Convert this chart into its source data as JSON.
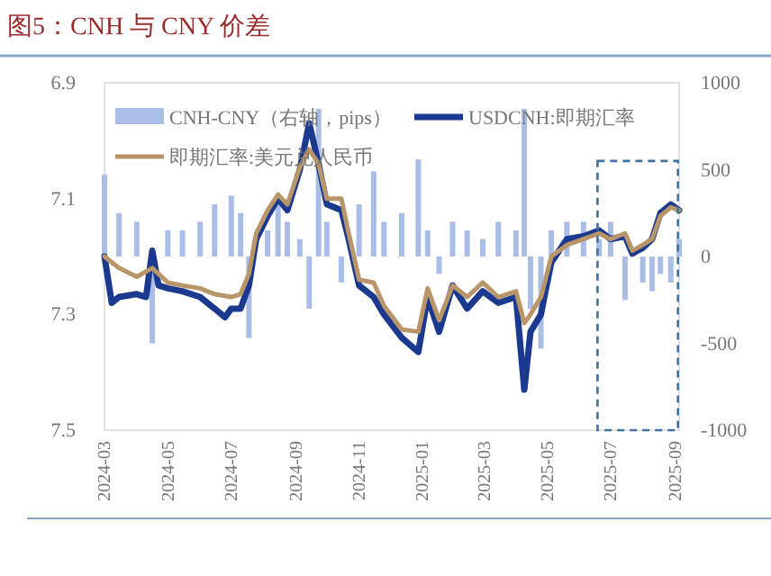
{
  "chart_data": {
    "type": "bar",
    "title": "图5：CNH 与 CNY 价差",
    "xlim": [
      "2024-03-01",
      "2025-09-05"
    ],
    "xticks": [
      {
        "value": "2024-03-01",
        "label": "2024-03"
      },
      {
        "value": "2024-05-01",
        "label": "2024-05"
      },
      {
        "value": "2024-07-01",
        "label": "2024-07"
      },
      {
        "value": "2024-09-01",
        "label": "2024-09"
      },
      {
        "value": "2024-11-01",
        "label": "2024-11"
      },
      {
        "value": "2025-01-01",
        "label": "2025-01"
      },
      {
        "value": "2025-03-01",
        "label": "2025-03"
      },
      {
        "value": "2025-05-01",
        "label": "2025-05"
      },
      {
        "value": "2025-07-01",
        "label": "2025-07"
      },
      {
        "value": "2025-09-01",
        "label": "2025-09"
      }
    ],
    "ylim": [
      7.5,
      6.9
    ],
    "yticks": [
      {
        "value": 6.9,
        "label": "6.9"
      },
      {
        "value": 7.1,
        "label": "7.1"
      },
      {
        "value": 7.3,
        "label": "7.3"
      },
      {
        "value": 7.5,
        "label": "7.5"
      }
    ],
    "y2lim": [
      -1000,
      1000
    ],
    "y2ticks": [
      -1000,
      -500,
      0,
      500,
      1000
    ],
    "grid": false,
    "legend": "top",
    "series": [
      {
        "name": "CNH-CNY（右轴，pips）",
        "axis": "y2",
        "color": "#a9bde6",
        "x": [
          "2024-03-01",
          "2024-03-15",
          "2024-04-01",
          "2024-04-16",
          "2024-05-01",
          "2024-05-15",
          "2024-06-01",
          "2024-06-15",
          "2024-07-01",
          "2024-07-10",
          "2024-07-18",
          "2024-07-25",
          "2024-08-05",
          "2024-08-15",
          "2024-08-24",
          "2024-09-05",
          "2024-09-14",
          "2024-09-23",
          "2024-10-01",
          "2024-10-15",
          "2024-10-22",
          "2024-11-01",
          "2024-11-15",
          "2024-11-25",
          "2024-12-12",
          "2024-12-28",
          "2025-01-06",
          "2025-01-17",
          "2025-01-30",
          "2025-02-13",
          "2025-02-28",
          "2025-03-15",
          "2025-04-01",
          "2025-04-09",
          "2025-04-15",
          "2025-04-25",
          "2025-05-05",
          "2025-05-20",
          "2025-06-05",
          "2025-06-20",
          "2025-07-01",
          "2025-07-15",
          "2025-07-22",
          "2025-08-01",
          "2025-08-10",
          "2025-08-18",
          "2025-08-28",
          "2025-09-05"
        ],
        "values": [
          470,
          250,
          200,
          -500,
          150,
          150,
          200,
          300,
          350,
          250,
          -470,
          null,
          150,
          300,
          200,
          100,
          -300,
          850,
          200,
          -150,
          null,
          300,
          490,
          200,
          250,
          560,
          150,
          -100,
          200,
          150,
          100,
          200,
          150,
          850,
          -300,
          -530,
          150,
          200,
          200,
          100,
          200,
          -250,
          null,
          -150,
          -200,
          -100,
          -150,
          100
        ]
      },
      {
        "name": "USDCNH:即期汇率",
        "type": "line",
        "color": "#1b3a8f",
        "x": [
          "2024-03-01",
          "2024-03-08",
          "2024-03-15",
          "2024-04-01",
          "2024-04-10",
          "2024-04-16",
          "2024-04-22",
          "2024-05-01",
          "2024-05-15",
          "2024-06-01",
          "2024-06-15",
          "2024-06-25",
          "2024-07-01",
          "2024-07-10",
          "2024-07-18",
          "2024-07-25",
          "2024-08-05",
          "2024-08-15",
          "2024-08-24",
          "2024-09-05",
          "2024-09-14",
          "2024-09-23",
          "2024-10-01",
          "2024-10-15",
          "2024-10-22",
          "2024-11-01",
          "2024-11-15",
          "2024-11-25",
          "2024-12-12",
          "2024-12-28",
          "2025-01-06",
          "2025-01-17",
          "2025-01-30",
          "2025-02-13",
          "2025-02-28",
          "2025-03-15",
          "2025-04-01",
          "2025-04-09",
          "2025-04-15",
          "2025-04-25",
          "2025-05-05",
          "2025-05-20",
          "2025-06-05",
          "2025-06-20",
          "2025-07-01",
          "2025-07-15",
          "2025-07-22",
          "2025-08-01",
          "2025-08-10",
          "2025-08-18",
          "2025-08-28",
          "2025-09-05"
        ],
        "values": [
          7.2,
          7.28,
          7.27,
          7.265,
          7.27,
          7.19,
          7.25,
          7.255,
          7.26,
          7.27,
          7.29,
          7.305,
          7.29,
          7.29,
          7.25,
          7.17,
          7.13,
          7.1,
          7.12,
          7.05,
          6.97,
          7.04,
          7.11,
          7.12,
          7.17,
          7.25,
          7.27,
          7.3,
          7.34,
          7.365,
          7.27,
          7.33,
          7.25,
          7.29,
          7.26,
          7.28,
          7.27,
          7.43,
          7.33,
          7.3,
          7.21,
          7.17,
          7.165,
          7.155,
          7.17,
          7.165,
          7.195,
          7.185,
          7.17,
          7.125,
          7.11,
          7.12
        ]
      },
      {
        "name": "即期汇率:美元兑人民币",
        "type": "line",
        "color": "#b9966a",
        "x": [
          "2024-03-01",
          "2024-03-15",
          "2024-04-01",
          "2024-04-16",
          "2024-05-01",
          "2024-05-15",
          "2024-06-01",
          "2024-06-15",
          "2024-07-01",
          "2024-07-10",
          "2024-07-18",
          "2024-07-25",
          "2024-08-05",
          "2024-08-15",
          "2024-08-24",
          "2024-09-05",
          "2024-09-14",
          "2024-09-23",
          "2024-10-01",
          "2024-10-15",
          "2024-10-22",
          "2024-11-01",
          "2024-11-15",
          "2024-11-25",
          "2024-12-12",
          "2024-12-28",
          "2025-01-06",
          "2025-01-17",
          "2025-01-30",
          "2025-02-13",
          "2025-02-28",
          "2025-03-15",
          "2025-04-01",
          "2025-04-09",
          "2025-04-15",
          "2025-04-25",
          "2025-05-05",
          "2025-05-20",
          "2025-06-05",
          "2025-06-20",
          "2025-07-01",
          "2025-07-15",
          "2025-07-22",
          "2025-08-01",
          "2025-08-10",
          "2025-08-18",
          "2025-08-28",
          "2025-09-05"
        ],
        "values": [
          7.2,
          7.22,
          7.235,
          7.22,
          7.245,
          7.25,
          7.255,
          7.265,
          7.27,
          7.265,
          7.23,
          7.16,
          7.12,
          7.093,
          7.11,
          7.046,
          7.015,
          7.04,
          7.1,
          7.1,
          7.16,
          7.24,
          7.245,
          7.285,
          7.326,
          7.33,
          7.255,
          7.31,
          7.25,
          7.27,
          7.245,
          7.27,
          7.26,
          7.315,
          7.3,
          7.27,
          7.2,
          7.18,
          7.17,
          7.16,
          7.17,
          7.16,
          7.19,
          7.18,
          7.17,
          7.13,
          7.115,
          7.12
        ]
      }
    ]
  }
}
